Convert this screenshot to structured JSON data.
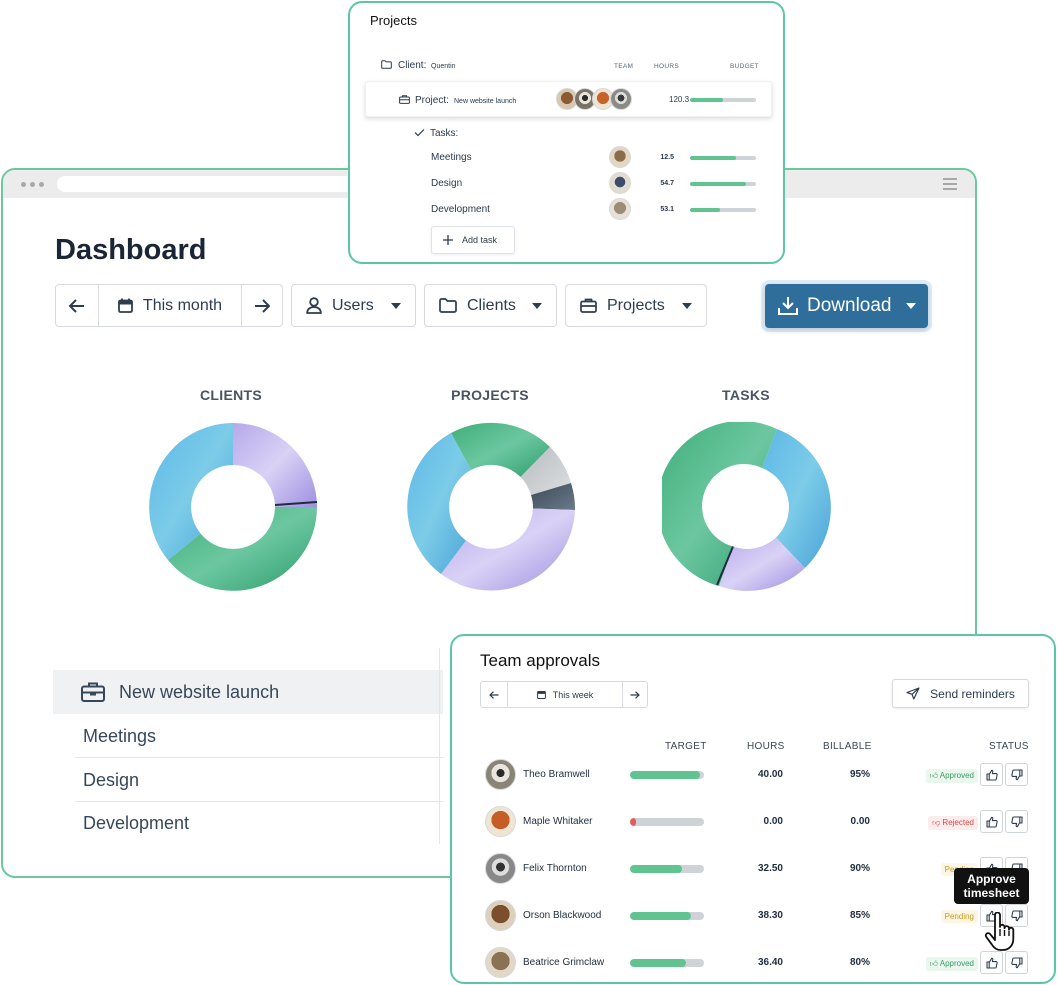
{
  "projects_card": {
    "title": "Projects",
    "client_label": "Client:",
    "client_name": "Quentin",
    "col_team": "TEAM",
    "col_hours": "HOURS",
    "col_budget": "BUDGET",
    "project_label": "Project:",
    "project_name": "New website launch",
    "project_hours": "120.3",
    "project_budget_pct": 0.5,
    "tasks_label": "Tasks:",
    "tasks": [
      {
        "name": "Meetings",
        "hours": "12.5",
        "budget_pct": 0.7
      },
      {
        "name": "Design",
        "hours": "54.7",
        "budget_pct": 0.85
      },
      {
        "name": "Development",
        "hours": "53.1",
        "budget_pct": 0.45
      }
    ],
    "add_task_label": "Add task"
  },
  "dashboard": {
    "title": "Dashboard",
    "period_label": "This month",
    "users_label": "Users",
    "clients_label": "Clients",
    "projects_label": "Projects",
    "download_label": "Download",
    "donut_titles": [
      "CLIENTS",
      "PROJECTS",
      "TASKS"
    ],
    "list": [
      "New website launch",
      "Meetings",
      "Design",
      "Development"
    ]
  },
  "team_approvals": {
    "title": "Team approvals",
    "period_label": "This week",
    "send_reminders_label": "Send reminders",
    "col_target": "TARGET",
    "col_hours": "HOURS",
    "col_billable": "BILLABLE",
    "col_status": "STATUS",
    "rows": [
      {
        "name": "Theo Bramwell",
        "target_pct": 0.95,
        "hours": "40.00",
        "billable": "95%",
        "status": "Approved"
      },
      {
        "name": "Maple Whitaker",
        "target_pct": 0.08,
        "hours": "0.00",
        "billable": "0.00",
        "status": "Rejected"
      },
      {
        "name": "Felix Thornton",
        "target_pct": 0.7,
        "hours": "32.50",
        "billable": "90%",
        "status": "Pending"
      },
      {
        "name": "Orson Blackwood",
        "target_pct": 0.82,
        "hours": "38.30",
        "billable": "85%",
        "status": "Pending"
      },
      {
        "name": "Beatrice Grimclaw",
        "target_pct": 0.75,
        "hours": "36.40",
        "billable": "80%",
        "status": "Approved"
      }
    ],
    "tooltip_line1": "Approve",
    "tooltip_line2": "timesheet"
  },
  "colors": {
    "accent": "#2f6e9b",
    "card_border": "#5cc7a6",
    "window_border": "#6cc89a",
    "bar_green": "#5fc48f",
    "bar_red": "#e35b5b"
  }
}
